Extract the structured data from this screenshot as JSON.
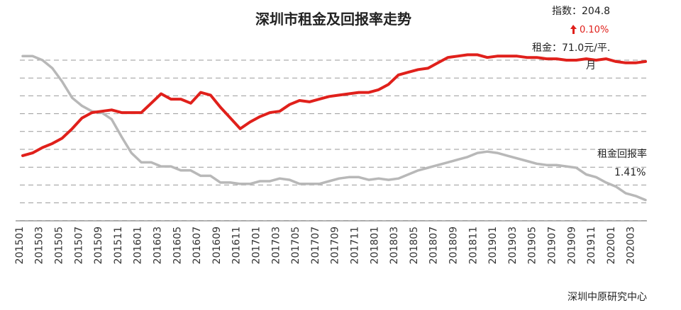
{
  "chart_data": {
    "type": "line",
    "title": "深圳市租金及回报率走势",
    "annotations": {
      "index_label": "指数：204.8",
      "change_label": "0.10%",
      "rent_label_line1": "租金：71.0元/平.",
      "rent_label_line2": "月",
      "yield_label_line1": "租金回报率",
      "yield_label_line2": "1.41%"
    },
    "source": "深圳中原研究中心",
    "x_tick_labels": [
      "201501",
      "201503",
      "201505",
      "201507",
      "201509",
      "201511",
      "201601",
      "201603",
      "201605",
      "201607",
      "201609",
      "201611",
      "201701",
      "201703",
      "201705",
      "201707",
      "201709",
      "201711",
      "201801",
      "201803",
      "201805",
      "201807",
      "201809",
      "201811",
      "201901",
      "201903",
      "201905",
      "201907",
      "201909",
      "201911",
      "202001",
      "202003"
    ],
    "x": [
      "201501",
      "201502",
      "201503",
      "201504",
      "201505",
      "201506",
      "201507",
      "201508",
      "201509",
      "201510",
      "201511",
      "201512",
      "201601",
      "201602",
      "201603",
      "201604",
      "201605",
      "201606",
      "201607",
      "201608",
      "201609",
      "201610",
      "201611",
      "201612",
      "201701",
      "201702",
      "201703",
      "201704",
      "201705",
      "201706",
      "201707",
      "201708",
      "201709",
      "201710",
      "201711",
      "201712",
      "201801",
      "201802",
      "201803",
      "201804",
      "201805",
      "201806",
      "201807",
      "201808",
      "201809",
      "201810",
      "201811",
      "201812",
      "201901",
      "201902",
      "201903",
      "201904",
      "201905",
      "201906",
      "201907",
      "201908",
      "201909",
      "201910",
      "201911",
      "201912",
      "202001",
      "202002",
      "202003",
      "202004"
    ],
    "y_range": [
      0,
      10
    ],
    "grid": true,
    "series": [
      {
        "name": "rent_index",
        "color": "#e0201b",
        "values": [
          2.9,
          3.1,
          3.5,
          3.8,
          4.2,
          4.9,
          5.7,
          6.1,
          6.2,
          6.3,
          6.1,
          6.1,
          6.1,
          6.8,
          7.5,
          7.1,
          7.1,
          6.8,
          7.6,
          7.4,
          6.5,
          5.7,
          4.9,
          5.4,
          5.8,
          6.1,
          6.2,
          6.7,
          7.0,
          6.9,
          7.1,
          7.3,
          7.4,
          7.5,
          7.6,
          7.6,
          7.8,
          8.2,
          8.9,
          9.1,
          9.3,
          9.4,
          9.8,
          10.2,
          10.3,
          10.4,
          10.4,
          10.2,
          10.3,
          10.3,
          10.3,
          10.2,
          10.2,
          10.1,
          10.1,
          10.0,
          10.0,
          10.1,
          10.0,
          10.1,
          9.9,
          9.8,
          9.8,
          9.9
        ]
      },
      {
        "name": "rental_yield",
        "color": "#b8b8b8",
        "values": [
          10.3,
          10.3,
          10.0,
          9.4,
          8.4,
          7.2,
          6.6,
          6.2,
          6.1,
          5.6,
          4.3,
          3.1,
          2.4,
          2.4,
          2.1,
          2.1,
          1.8,
          1.8,
          1.4,
          1.4,
          0.9,
          0.9,
          0.8,
          0.8,
          1.0,
          1.0,
          1.2,
          1.1,
          0.8,
          0.8,
          0.8,
          1.0,
          1.2,
          1.3,
          1.3,
          1.1,
          1.2,
          1.1,
          1.2,
          1.5,
          1.8,
          2.0,
          2.2,
          2.4,
          2.6,
          2.8,
          3.1,
          3.2,
          3.1,
          2.9,
          2.7,
          2.5,
          2.3,
          2.2,
          2.2,
          2.1,
          2.0,
          1.5,
          1.3,
          0.9,
          0.6,
          0.1,
          -0.1,
          -0.4
        ]
      }
    ]
  }
}
